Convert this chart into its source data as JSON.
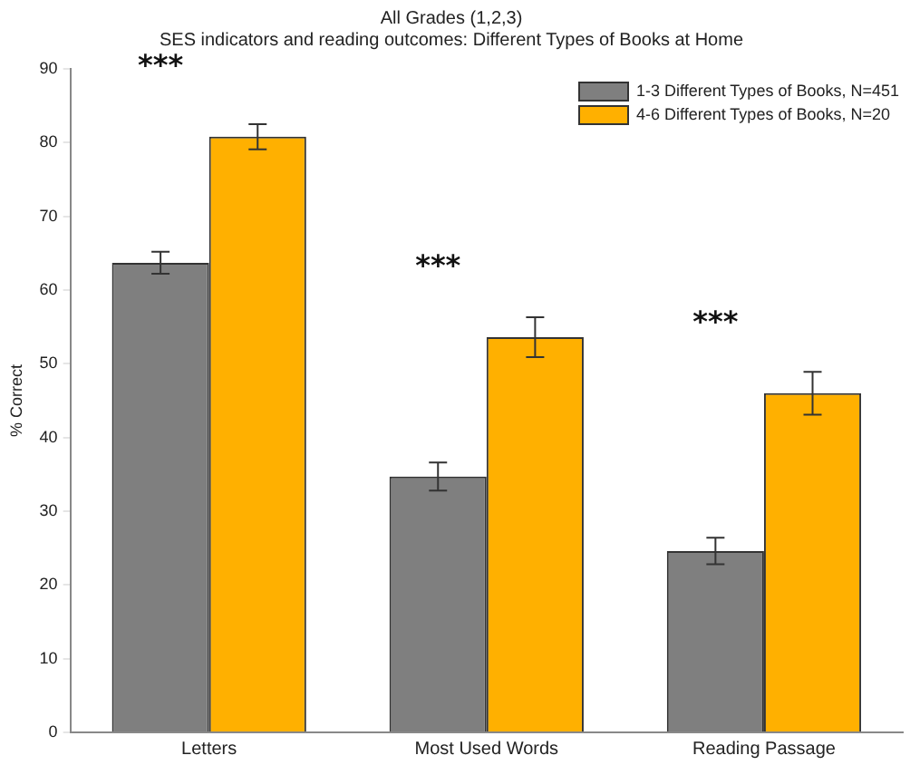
{
  "chart_data": {
    "type": "bar",
    "title": "All Grades (1,2,3)",
    "subtitle": "SES indicators and reading outcomes: Different Types of Books at Home",
    "ylabel": "% Correct",
    "categories": [
      "Letters",
      "Most Used Words",
      "Reading Passage"
    ],
    "series": [
      {
        "name": "1-3 Different Types of Books, N=451",
        "color": "#7f7f7f",
        "values": [
          63.7,
          34.7,
          24.6
        ],
        "errors": [
          1.5,
          1.9,
          1.8
        ]
      },
      {
        "name": "4-6 Different Types of Books, N=20",
        "color": "#ffb000",
        "values": [
          80.8,
          53.6,
          46
        ],
        "errors": [
          1.7,
          2.7,
          2.9
        ]
      }
    ],
    "ylim": [
      0,
      90
    ],
    "yticks": [
      0,
      10,
      20,
      30,
      40,
      50,
      60,
      70,
      80,
      90
    ],
    "grid": false,
    "legend": "top right",
    "annotations": [
      "***",
      "***",
      "***"
    ]
  }
}
